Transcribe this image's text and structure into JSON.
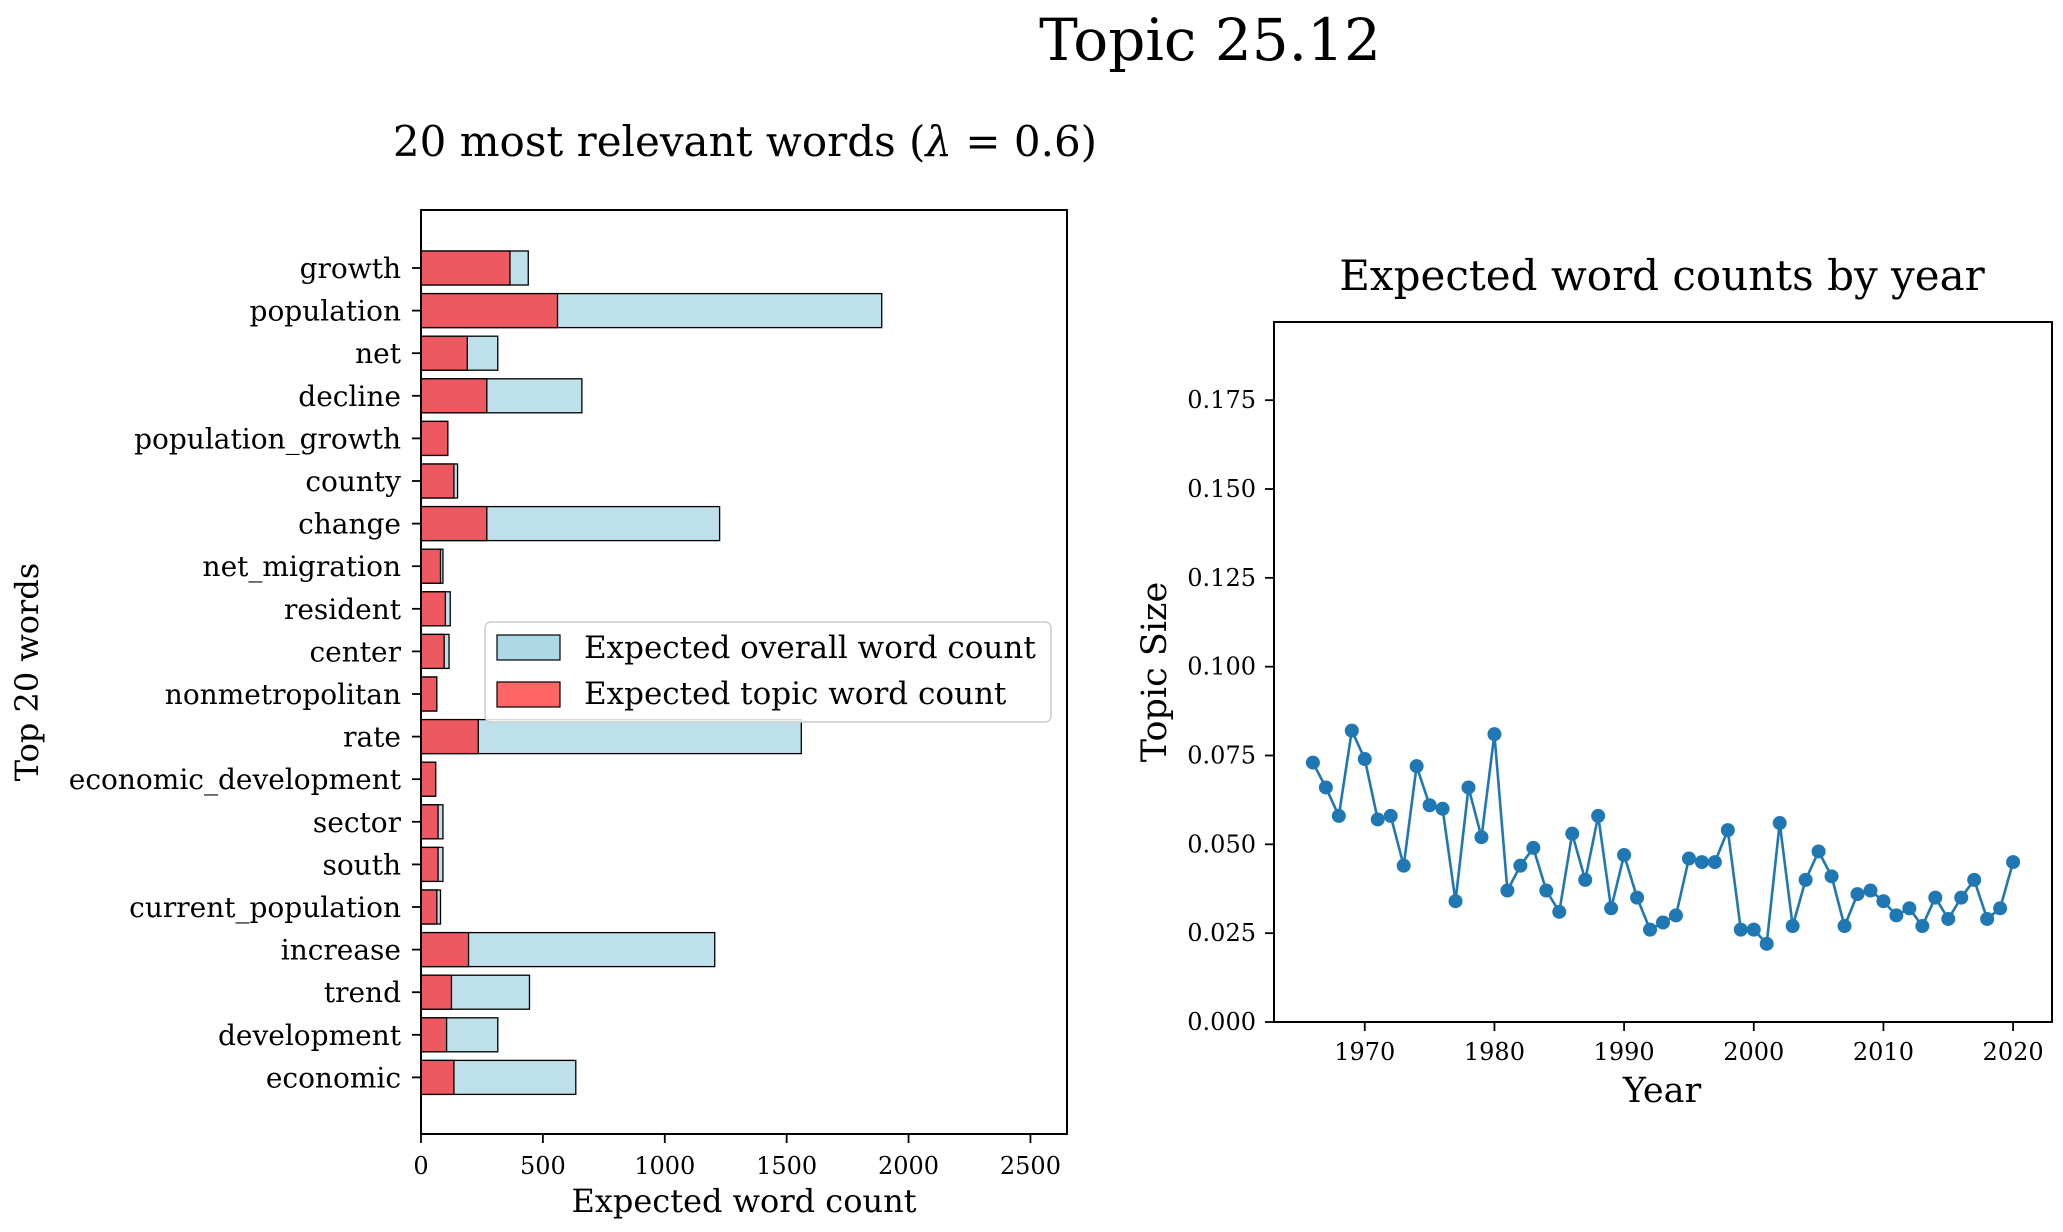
{
  "figure_title": "Topic 25.12",
  "chart_data": [
    {
      "type": "bar",
      "orientation": "horizontal",
      "title": "20 most relevant words (λ = 0.6)",
      "title_prefix": "20 most relevant words (",
      "title_lambda": "λ",
      "title_suffix": " = 0.6)",
      "xlabel": "Expected word count",
      "ylabel": "Top 20 words",
      "xlim": [
        0,
        2650
      ],
      "xticks": [
        0,
        500,
        1000,
        1500,
        2000,
        2500
      ],
      "xtick_labels": [
        "0",
        "500",
        "1000",
        "1500",
        "2000",
        "2500"
      ],
      "categories": [
        "growth",
        "population",
        "net",
        "decline",
        "population_growth",
        "county",
        "change",
        "net_migration",
        "resident",
        "center",
        "nonmetropolitan",
        "rate",
        "economic_development",
        "sector",
        "south",
        "current_population",
        "increase",
        "trend",
        "development",
        "economic"
      ],
      "series": [
        {
          "name": "Expected overall word count",
          "color": "#add8e6",
          "values": [
            440,
            1890,
            315,
            660,
            110,
            150,
            1225,
            90,
            120,
            115,
            65,
            1560,
            60,
            90,
            90,
            80,
            1205,
            445,
            315,
            635
          ]
        },
        {
          "name": "Expected topic word count",
          "color": "#f0505a",
          "values": [
            365,
            560,
            190,
            270,
            110,
            135,
            270,
            80,
            100,
            95,
            65,
            235,
            60,
            70,
            70,
            65,
            195,
            125,
            105,
            135
          ]
        }
      ],
      "legend": "center-right",
      "grid": false
    },
    {
      "type": "line",
      "title": "Expected word counts by year",
      "xlabel": "Year",
      "ylabel": "Topic Size",
      "xlim": [
        1963,
        2023
      ],
      "ylim": [
        0,
        0.197
      ],
      "xticks": [
        1970,
        1980,
        1990,
        2000,
        2010,
        2020
      ],
      "xtick_labels": [
        "1970",
        "1980",
        "1990",
        "2000",
        "2010",
        "2020"
      ],
      "yticks": [
        0,
        0.025,
        0.05,
        0.075,
        0.1,
        0.125,
        0.15,
        0.175
      ],
      "ytick_labels": [
        "0.000",
        "0.025",
        "0.050",
        "0.075",
        "0.100",
        "0.125",
        "0.150",
        "0.175"
      ],
      "color": "#1f77b4",
      "x": [
        1966,
        1967,
        1968,
        1969,
        1970,
        1971,
        1972,
        1973,
        1974,
        1975,
        1976,
        1977,
        1978,
        1979,
        1980,
        1981,
        1982,
        1983,
        1984,
        1985,
        1986,
        1987,
        1988,
        1989,
        1990,
        1991,
        1992,
        1993,
        1994,
        1995,
        1996,
        1997,
        1998,
        1999,
        2000,
        2001,
        2002,
        2003,
        2004,
        2005,
        2006,
        2007,
        2008,
        2009,
        2010,
        2011,
        2012,
        2013,
        2014,
        2015,
        2016,
        2017,
        2018,
        2019,
        2020
      ],
      "y": [
        0.073,
        0.066,
        0.058,
        0.082,
        0.074,
        0.057,
        0.058,
        0.044,
        0.072,
        0.061,
        0.06,
        0.034,
        0.066,
        0.052,
        0.081,
        0.037,
        0.044,
        0.049,
        0.037,
        0.031,
        0.053,
        0.04,
        0.058,
        0.032,
        0.047,
        0.035,
        0.026,
        0.028,
        0.03,
        0.046,
        0.045,
        0.045,
        0.054,
        0.026,
        0.026,
        0.022,
        0.056,
        0.027,
        0.04,
        0.048,
        0.041,
        0.027,
        0.036,
        0.037,
        0.034,
        0.03,
        0.032,
        0.027,
        0.035,
        0.029,
        0.035,
        0.04,
        0.029,
        0.032,
        0.045
      ],
      "grid": false
    }
  ]
}
